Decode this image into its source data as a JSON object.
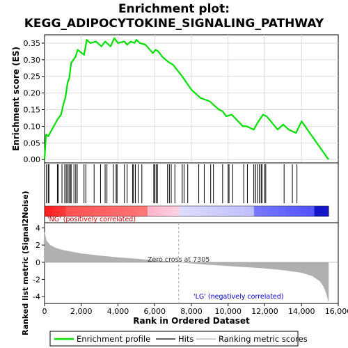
{
  "chart_data": {
    "type": "line",
    "title_line1": "Enrichment plot:",
    "title_line2": "KEGG_ADIPOCYTOKINE_SIGNALING_PATHWAY",
    "es_panel": {
      "ylabel": "Enrichment score (ES)",
      "ylim": [
        -0.01,
        0.375
      ],
      "yticks": [
        0.0,
        0.05,
        0.1,
        0.15,
        0.2,
        0.25,
        0.3,
        0.35
      ],
      "ytick_labels": [
        "0.00",
        "0.05",
        "0.10",
        "0.15",
        "0.20",
        "0.25",
        "0.30",
        "0.35"
      ],
      "series_name": "Enrichment profile",
      "color": "#00e000",
      "x": [
        0,
        80,
        200,
        700,
        900,
        1000,
        1150,
        1250,
        1350,
        1450,
        1700,
        1800,
        2150,
        2300,
        2500,
        2800,
        3100,
        3300,
        3600,
        3800,
        4000,
        4350,
        4500,
        4700,
        4900,
        5000,
        5200,
        5500,
        5900,
        6050,
        6200,
        6400,
        6700,
        7000,
        7500,
        8000,
        8500,
        9000,
        9300,
        9500,
        9700,
        9900,
        10200,
        10800,
        11000,
        11400,
        11600,
        11900,
        12100,
        12700,
        13000,
        13300,
        13700,
        14000,
        15470
      ],
      "y": [
        0.0,
        0.075,
        0.07,
        0.12,
        0.135,
        0.16,
        0.19,
        0.23,
        0.245,
        0.29,
        0.31,
        0.33,
        0.315,
        0.36,
        0.35,
        0.355,
        0.34,
        0.355,
        0.34,
        0.365,
        0.35,
        0.355,
        0.345,
        0.355,
        0.35,
        0.36,
        0.35,
        0.345,
        0.32,
        0.33,
        0.325,
        0.31,
        0.295,
        0.285,
        0.25,
        0.21,
        0.185,
        0.175,
        0.16,
        0.15,
        0.145,
        0.13,
        0.135,
        0.1,
        0.1,
        0.09,
        0.11,
        0.135,
        0.13,
        0.09,
        0.105,
        0.09,
        0.08,
        0.115,
        0.0
      ]
    },
    "hits_panel": {
      "positions": [
        100,
        200,
        240,
        700,
        750,
        950,
        1100,
        1180,
        1250,
        1330,
        1400,
        1450,
        1600,
        1700,
        1780,
        2150,
        2250,
        2700,
        3050,
        3300,
        3400,
        3750,
        3900,
        3950,
        4350,
        4500,
        4800,
        4850,
        4950,
        5100,
        5300,
        5950,
        6000,
        6080,
        6150,
        6700,
        6800,
        6900,
        7100,
        7500,
        7600,
        7800,
        8400,
        8700,
        9050,
        9200,
        9700,
        10000,
        10050,
        10250,
        10850,
        11050,
        11400,
        11500,
        11600,
        11700,
        11800,
        11850,
        12000,
        12050,
        13050,
        13500,
        13750
      ]
    },
    "color_bar": {
      "label_pos": "'NG' (positively correlated)",
      "label_neg": "'LG' (negatively correlated)",
      "pos_color": "#ff0000",
      "neg_color": "#0000ff"
    },
    "rank_panel": {
      "ylabel": "Ranked list metric (Signal2Noise)",
      "ylim": [
        -4.8,
        4.6
      ],
      "yticks": [
        -4,
        -2,
        0,
        2,
        4
      ],
      "ytick_labels": [
        "-4",
        "-2",
        "0",
        "2",
        "4"
      ],
      "zero_cross_text": "Zero cross at 7305",
      "zero_cross": 7305,
      "metric_x": [
        0,
        100,
        300,
        600,
        1000,
        2000,
        3000,
        4000,
        5000,
        6000,
        7305,
        8000,
        9000,
        10000,
        11000,
        12000,
        13000,
        14000,
        14600,
        15000,
        15200,
        15350,
        15470
      ],
      "metric_y": [
        3.5,
        2.5,
        2.0,
        1.65,
        1.4,
        1.0,
        0.75,
        0.55,
        0.38,
        0.2,
        0.0,
        -0.12,
        -0.28,
        -0.42,
        -0.55,
        -0.7,
        -0.9,
        -1.2,
        -1.6,
        -2.2,
        -2.8,
        -3.6,
        -4.6
      ],
      "color": "#b0b0b0"
    },
    "x_axis": {
      "xlabel": "Rank in Ordered Dataset",
      "xlim": [
        0,
        16000
      ],
      "xticks": [
        0,
        2000,
        4000,
        6000,
        8000,
        10000,
        12000,
        14000,
        16000
      ],
      "xtick_labels": [
        "0",
        "2,000",
        "4,000",
        "6,000",
        "8,000",
        "10,000",
        "12,000",
        "14,000",
        "16,000"
      ],
      "n_genes": 15470
    },
    "legend": [
      {
        "label": "Enrichment profile",
        "color": "#00e000"
      },
      {
        "label": "Hits",
        "color": "#000000"
      },
      {
        "label": "Ranking metric scores",
        "color": "#b0b0b0"
      }
    ]
  }
}
